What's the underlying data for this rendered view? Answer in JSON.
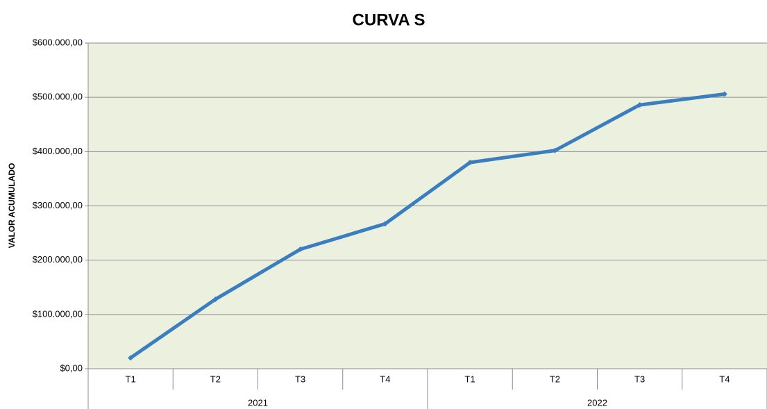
{
  "chart_data": {
    "type": "line",
    "title": "CURVA S",
    "y_label": "VALOR ACUMULADO",
    "categories": [
      "T1",
      "T2",
      "T3",
      "T4",
      "T1",
      "T2",
      "T3",
      "T4"
    ],
    "category_groups": [
      {
        "label": "2021",
        "span": 4
      },
      {
        "label": "2022",
        "span": 4
      }
    ],
    "values": [
      20000,
      128000,
      220000,
      267000,
      380000,
      402000,
      486000,
      506000
    ],
    "color": "#3a7ebf",
    "ylim": [
      0,
      600000
    ],
    "yticks": [
      {
        "value": 0,
        "label": "$0,00"
      },
      {
        "value": 100000,
        "label": "$100.000,00"
      },
      {
        "value": 200000,
        "label": "$200.000,00"
      },
      {
        "value": 300000,
        "label": "$300.000,00"
      },
      {
        "value": 400000,
        "label": "$400.000,00"
      },
      {
        "value": 500000,
        "label": "$500.000,00"
      },
      {
        "value": 600000,
        "label": "$600.000,00"
      }
    ],
    "grid": true
  }
}
